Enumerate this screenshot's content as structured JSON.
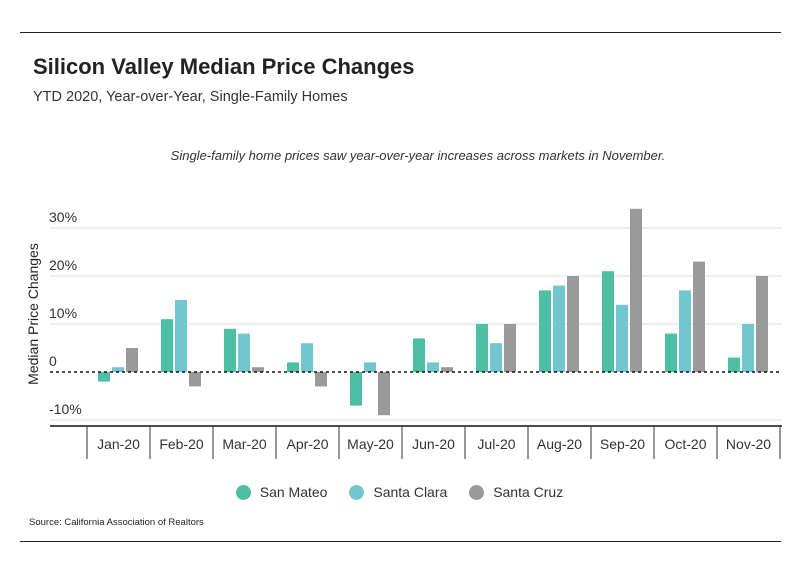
{
  "header": {
    "title": "Silicon Valley Median Price Changes",
    "subtitle": "YTD 2020, Year-over-Year, Single-Family Homes"
  },
  "annotation": "Single-family home prices saw year-over-year increases across markets in November.",
  "source": "Source:  California Association of Realtors",
  "chart_data": {
    "type": "bar",
    "ylabel": "Median Price Changes",
    "xlabel": "",
    "ylim": [
      -10,
      34
    ],
    "yticks": [
      -10,
      0,
      10,
      20,
      30
    ],
    "ytick_labels": [
      "-10%",
      "0",
      "10%",
      "20%",
      "30%"
    ],
    "grid": true,
    "legend_position": "bottom-center",
    "categories": [
      "Jan-20",
      "Feb-20",
      "Mar-20",
      "Apr-20",
      "May-20",
      "Jun-20",
      "Jul-20",
      "Aug-20",
      "Sep-20",
      "Oct-20",
      "Nov-20"
    ],
    "series": [
      {
        "name": "San Mateo",
        "color": "#4dbfa5",
        "values": [
          -2,
          11,
          9,
          2,
          -7,
          7,
          10,
          17,
          21,
          8,
          3
        ]
      },
      {
        "name": "Santa Clara",
        "color": "#72c6d0",
        "values": [
          1,
          15,
          8,
          6,
          2,
          2,
          6,
          18,
          14,
          17,
          10
        ]
      },
      {
        "name": "Santa Cruz",
        "color": "#9a9a9a",
        "values": [
          5,
          -3,
          1,
          -3,
          -9,
          1,
          10,
          20,
          34,
          23,
          20
        ]
      }
    ]
  }
}
